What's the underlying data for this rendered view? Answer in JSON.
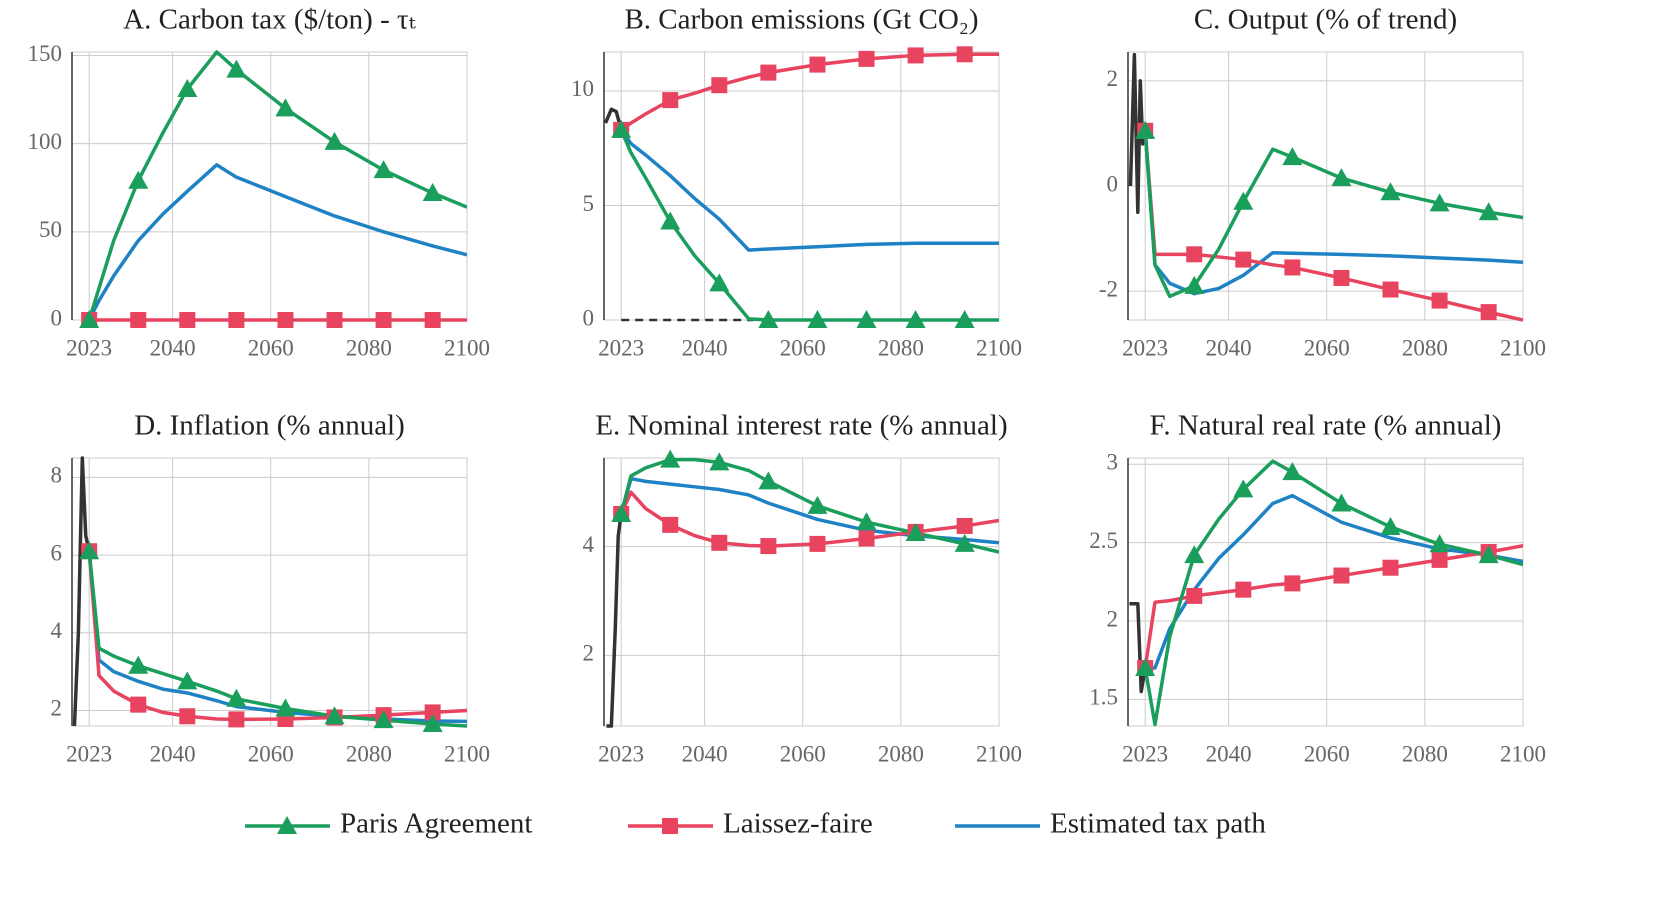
{
  "chart_data": [
    {
      "type": "line",
      "title": "A. Carbon tax ($/ton) - τₜ",
      "x": [
        2023,
        2025,
        2028,
        2033,
        2038,
        2043,
        2049,
        2053,
        2063,
        2073,
        2083,
        2093,
        2100
      ],
      "xlim": [
        2019.5,
        2100
      ],
      "xticks": [
        2023,
        2040,
        2060,
        2080,
        2100
      ],
      "ylim": [
        0,
        152
      ],
      "yticks": [
        0,
        50,
        100,
        150
      ],
      "grid": true,
      "series": [
        {
          "name": "Paris Agreement",
          "color": "#1a9e5c",
          "marker": "triangle",
          "values": [
            0,
            18,
            45,
            79,
            106,
            131,
            152,
            142,
            120,
            101,
            85,
            72,
            64
          ]
        },
        {
          "name": "Laissez-faire",
          "color": "#e8435f",
          "marker": "square",
          "values": [
            0,
            0,
            0,
            0,
            0,
            0,
            0,
            0,
            0,
            0,
            0,
            0,
            0
          ]
        },
        {
          "name": "Estimated tax path",
          "color": "#1f82c4",
          "values": [
            0,
            11,
            25,
            45,
            60,
            73,
            88,
            81,
            70,
            59,
            50,
            42,
            37
          ]
        }
      ]
    },
    {
      "type": "line",
      "title": "B. Carbon emissions (Gt CO₂)",
      "x": [
        2023,
        2025,
        2028,
        2033,
        2038,
        2043,
        2049,
        2053,
        2063,
        2073,
        2083,
        2093,
        2100
      ],
      "xlim": [
        2019.5,
        2100
      ],
      "xticks": [
        2023,
        2040,
        2060,
        2080,
        2100
      ],
      "ylim": [
        0,
        11.7
      ],
      "yticks": [
        0,
        5,
        10
      ],
      "grid": true,
      "series": [
        {
          "name": "Paris Agreement",
          "color": "#1a9e5c",
          "marker": "triangle",
          "values": [
            8.3,
            7.3,
            6.2,
            4.3,
            2.8,
            1.6,
            0.05,
            0,
            0,
            0,
            0,
            0,
            0
          ]
        },
        {
          "name": "Laissez-faire",
          "color": "#e8435f",
          "marker": "square",
          "values": [
            8.3,
            8.6,
            9.0,
            9.6,
            9.9,
            10.25,
            10.6,
            10.8,
            11.15,
            11.4,
            11.55,
            11.6,
            11.6
          ]
        },
        {
          "name": "Estimated tax path",
          "color": "#1f82c4",
          "values": [
            8.3,
            7.7,
            7.2,
            6.3,
            5.3,
            4.4,
            3.05,
            3.1,
            3.2,
            3.3,
            3.35,
            3.35,
            3.35
          ]
        },
        {
          "color": "#333333",
          "x": [
            2019.8,
            2021,
            2022,
            2023
          ],
          "values": [
            8.6,
            9.2,
            9.1,
            8.3
          ]
        },
        {
          "color": "#333333",
          "dash": true,
          "x": [
            2023,
            2050
          ],
          "values": [
            0,
            0
          ]
        }
      ]
    },
    {
      "type": "line",
      "title": "C. Output (% of trend)",
      "x": [
        2023,
        2025,
        2028,
        2033,
        2038,
        2043,
        2049,
        2053,
        2063,
        2073,
        2083,
        2093,
        2100
      ],
      "xlim": [
        2019.5,
        2100
      ],
      "xticks": [
        2023,
        2040,
        2060,
        2080,
        2100
      ],
      "ylim": [
        -2.55,
        2.55
      ],
      "yticks": [
        -2,
        0,
        2
      ],
      "grid": true,
      "series": [
        {
          "name": "Paris Agreement",
          "color": "#1a9e5c",
          "marker": "triangle",
          "values": [
            1.05,
            -1.5,
            -2.1,
            -1.9,
            -1.2,
            -0.3,
            0.7,
            0.55,
            0.15,
            -0.12,
            -0.33,
            -0.5,
            -0.6
          ]
        },
        {
          "name": "Laissez-faire",
          "color": "#e8435f",
          "marker": "square",
          "values": [
            1.05,
            -1.3,
            -1.3,
            -1.3,
            -1.35,
            -1.4,
            -1.5,
            -1.55,
            -1.75,
            -1.97,
            -2.18,
            -2.4,
            -2.55
          ]
        },
        {
          "name": "Estimated tax path",
          "color": "#1f82c4",
          "values": [
            1.05,
            -1.5,
            -1.85,
            -2.05,
            -1.95,
            -1.7,
            -1.27,
            -1.28,
            -1.3,
            -1.33,
            -1.37,
            -1.41,
            -1.45
          ]
        },
        {
          "color": "#333333",
          "x": [
            2020,
            2020.8,
            2021.5,
            2022,
            2022.5,
            2023
          ],
          "values": [
            0,
            2.5,
            -0.5,
            2.0,
            0.8,
            1.05
          ]
        }
      ]
    },
    {
      "type": "line",
      "title": "D. Inflation (% annual)",
      "x": [
        2023,
        2025,
        2028,
        2033,
        2038,
        2043,
        2049,
        2053,
        2063,
        2073,
        2083,
        2093,
        2100
      ],
      "xlim": [
        2019.5,
        2100
      ],
      "xticks": [
        2023,
        2040,
        2060,
        2080,
        2100
      ],
      "ylim": [
        1.6,
        8.5
      ],
      "yticks": [
        2,
        4,
        6,
        8
      ],
      "grid": true,
      "series": [
        {
          "name": "Paris Agreement",
          "color": "#1a9e5c",
          "marker": "triangle",
          "values": [
            6.1,
            3.6,
            3.4,
            3.15,
            2.95,
            2.75,
            2.5,
            2.3,
            2.05,
            1.85,
            1.75,
            1.65,
            1.6
          ]
        },
        {
          "name": "Laissez-faire",
          "color": "#e8435f",
          "marker": "square",
          "values": [
            6.1,
            2.9,
            2.5,
            2.15,
            1.95,
            1.85,
            1.78,
            1.77,
            1.78,
            1.82,
            1.88,
            1.95,
            2.0
          ]
        },
        {
          "name": "Estimated tax path",
          "color": "#1f82c4",
          "values": [
            6.1,
            3.3,
            3.0,
            2.75,
            2.55,
            2.45,
            2.25,
            2.1,
            1.95,
            1.85,
            1.78,
            1.73,
            1.72
          ]
        },
        {
          "color": "#333333",
          "x": [
            2020,
            2020.8,
            2021.6,
            2022.3,
            2023
          ],
          "values": [
            1.6,
            4,
            8.5,
            6.5,
            6.1
          ]
        }
      ]
    },
    {
      "type": "line",
      "title": "E. Nominal interest rate (% annual)",
      "x": [
        2023,
        2025,
        2028,
        2033,
        2038,
        2043,
        2049,
        2053,
        2063,
        2073,
        2083,
        2093,
        2100
      ],
      "xlim": [
        2019.5,
        2100
      ],
      "xticks": [
        2023,
        2040,
        2060,
        2080,
        2100
      ],
      "ylim": [
        0.7,
        5.63
      ],
      "yticks": [
        2,
        4
      ],
      "grid": true,
      "series": [
        {
          "name": "Paris Agreement",
          "color": "#1a9e5c",
          "marker": "triangle",
          "values": [
            4.6,
            5.3,
            5.45,
            5.6,
            5.6,
            5.55,
            5.4,
            5.2,
            4.75,
            4.45,
            4.25,
            4.05,
            3.9
          ]
        },
        {
          "name": "Laissez-faire",
          "color": "#e8435f",
          "marker": "square",
          "values": [
            4.6,
            5.0,
            4.7,
            4.4,
            4.2,
            4.07,
            4.02,
            4.01,
            4.05,
            4.15,
            4.27,
            4.38,
            4.48
          ]
        },
        {
          "name": "Estimated tax path",
          "color": "#1f82c4",
          "values": [
            4.6,
            5.25,
            5.2,
            5.15,
            5.1,
            5.05,
            4.95,
            4.8,
            4.5,
            4.3,
            4.2,
            4.13,
            4.07
          ]
        },
        {
          "color": "#333333",
          "x": [
            2020,
            2021,
            2021.8,
            2022.4,
            2023
          ],
          "values": [
            0.7,
            0.7,
            2.5,
            4.2,
            4.6
          ]
        }
      ]
    },
    {
      "type": "line",
      "title": "F. Natural real rate (% annual)",
      "x": [
        2023,
        2025,
        2028,
        2033,
        2038,
        2043,
        2049,
        2053,
        2063,
        2073,
        2083,
        2093,
        2100
      ],
      "xlim": [
        2019.5,
        2100
      ],
      "xticks": [
        2023,
        2040,
        2060,
        2080,
        2100
      ],
      "ylim": [
        1.33,
        3.04
      ],
      "yticks": [
        1.5,
        2,
        2.5,
        3
      ],
      "grid": true,
      "series": [
        {
          "name": "Paris Agreement",
          "color": "#1a9e5c",
          "marker": "triangle",
          "values": [
            1.7,
            1.34,
            1.9,
            2.42,
            2.65,
            2.84,
            3.02,
            2.95,
            2.75,
            2.6,
            2.49,
            2.42,
            2.36
          ]
        },
        {
          "name": "Laissez-faire",
          "color": "#e8435f",
          "marker": "square",
          "values": [
            1.7,
            2.12,
            2.13,
            2.16,
            2.18,
            2.2,
            2.23,
            2.24,
            2.29,
            2.34,
            2.39,
            2.44,
            2.48
          ]
        },
        {
          "name": "Estimated tax path",
          "color": "#1f82c4",
          "values": [
            1.7,
            1.7,
            1.95,
            2.2,
            2.4,
            2.55,
            2.75,
            2.8,
            2.63,
            2.53,
            2.46,
            2.42,
            2.38
          ]
        },
        {
          "color": "#333333",
          "x": [
            2019.8,
            2021.5,
            2022.2,
            2023
          ],
          "values": [
            2.11,
            2.11,
            1.55,
            1.7
          ]
        }
      ]
    }
  ]
}
